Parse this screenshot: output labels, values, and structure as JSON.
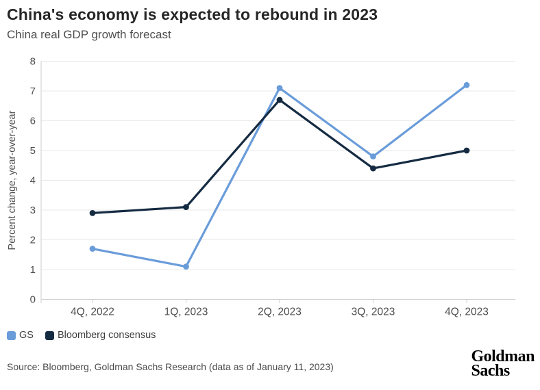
{
  "header": {
    "title": "China's economy is expected to rebound in 2023",
    "subtitle": "China real GDP growth forecast"
  },
  "chart_data": {
    "type": "line",
    "categories": [
      "4Q, 2022",
      "1Q, 2023",
      "2Q, 2023",
      "3Q, 2023",
      "4Q, 2023"
    ],
    "series": [
      {
        "name": "GS",
        "color": "#6a9cda",
        "values": [
          1.7,
          1.1,
          7.1,
          4.8,
          7.2
        ]
      },
      {
        "name": "Bloomberg consensus",
        "color": "#152b42",
        "values": [
          2.9,
          3.1,
          6.7,
          4.4,
          5.0
        ]
      }
    ],
    "title": "China's economy is expected to rebound in 2023",
    "subtitle": "China real GDP growth forecast",
    "xlabel": "",
    "ylabel": "Percent change, year-over-year",
    "ylim": [
      0,
      8
    ],
    "yticks": [
      0,
      1,
      2,
      3,
      4,
      5,
      6,
      7,
      8
    ],
    "grid": true,
    "legend_position": "bottom-left",
    "colors": {
      "gridline": "#e8e8e8",
      "axis": "#cdcdcd",
      "tick_label": "#4d4d4d"
    }
  },
  "footer": {
    "source": "Source: Bloomberg, Goldman Sachs Research (data as of January 11, 2023)",
    "logo_line1": "Goldman",
    "logo_line2": "Sachs"
  }
}
